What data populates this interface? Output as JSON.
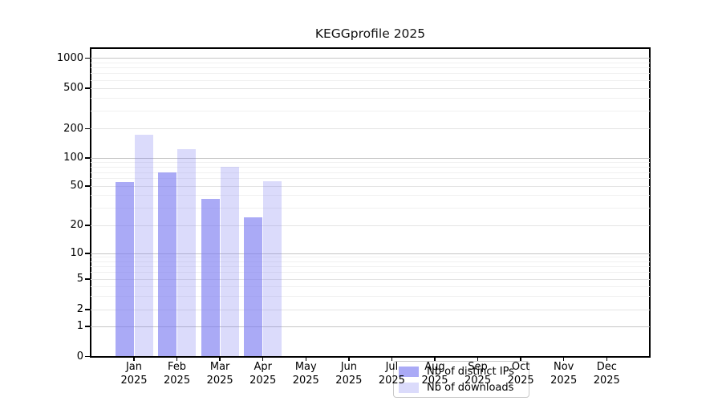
{
  "chart_data": {
    "type": "bar",
    "title": "KEGGprofile 2025",
    "categories": [
      "Jan 2025",
      "Feb 2025",
      "Mar 2025",
      "Apr 2025",
      "May 2025",
      "Jun 2025",
      "Jul 2025",
      "Aug 2025",
      "Sep 2025",
      "Oct 2025",
      "Nov 2025",
      "Dec 2025"
    ],
    "series": [
      {
        "name": "Nb of distinct IPs",
        "color": "#7979f0",
        "alpha": 0.63,
        "values": [
          55,
          70,
          37,
          24,
          null,
          null,
          null,
          null,
          null,
          null,
          null,
          null
        ]
      },
      {
        "name": "Nb of downloads",
        "color": "#7979f0",
        "alpha": 0.27,
        "values": [
          175,
          124,
          81,
          56,
          null,
          null,
          null,
          null,
          null,
          null,
          null,
          null
        ]
      }
    ],
    "xlabel": "",
    "ylabel": "",
    "y_ticks": [
      0,
      1,
      2,
      5,
      10,
      20,
      50,
      100,
      200,
      500,
      1000
    ],
    "y_scale": "symlog",
    "ylim": [
      0,
      1300
    ],
    "grid": true,
    "legend_position": "lower center",
    "colors": {
      "bar_base": "#7979f0",
      "grid_decade": "#c6c6c6",
      "grid_major": "#e4e4e4",
      "grid_minor": "#f0f0f0",
      "spine": "#000000",
      "background": "#ffffff"
    }
  }
}
